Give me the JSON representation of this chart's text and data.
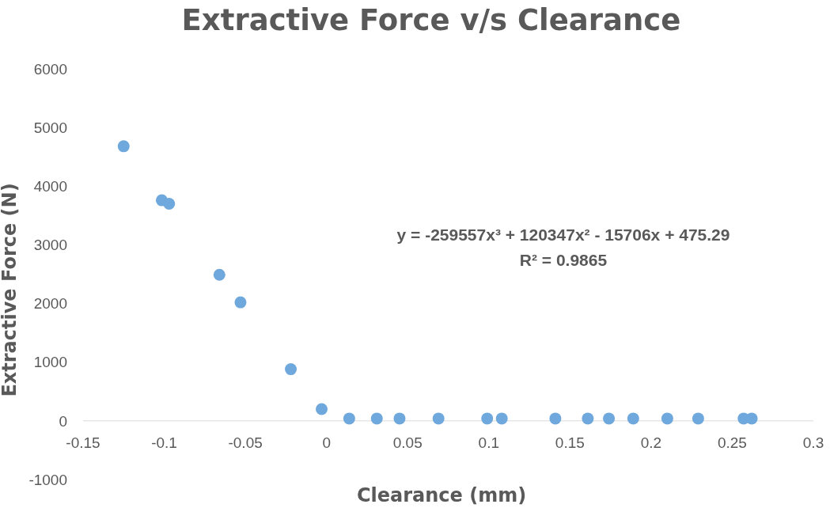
{
  "chart_data": {
    "type": "scatter",
    "title": "Extractive Force v/s Clearance",
    "xlabel": "Clearance (mm)",
    "ylabel": "Extractive Force (N)",
    "x": [
      -0.125,
      -0.1015,
      -0.097,
      -0.066,
      -0.053,
      -0.022,
      -0.003,
      0.014,
      0.031,
      0.045,
      0.069,
      0.099,
      0.108,
      0.141,
      0.161,
      0.174,
      0.189,
      0.21,
      0.229,
      0.257,
      0.262
    ],
    "series": [
      {
        "color": "#6fa8dc",
        "values": [
          4680,
          3760,
          3700,
          2490,
          2020,
          880,
          200,
          40,
          40,
          40,
          40,
          40,
          40,
          40,
          40,
          40,
          40,
          40,
          40,
          40,
          40
        ]
      }
    ],
    "xlim": [
      -0.15,
      0.3
    ],
    "xticks": [
      -0.15,
      -0.1,
      -0.05,
      0,
      0.05,
      0.1,
      0.15,
      0.2,
      0.25,
      0.3
    ],
    "ylim": [
      -1000,
      6000
    ],
    "yticks": [
      -1000,
      0,
      1000,
      2000,
      3000,
      4000,
      5000,
      6000
    ],
    "marker": "circle",
    "grid": false,
    "annotations": [
      "y = -259557x³ + 120347x² - 15706x + 475.29",
      "R² = 0.9865"
    ]
  }
}
